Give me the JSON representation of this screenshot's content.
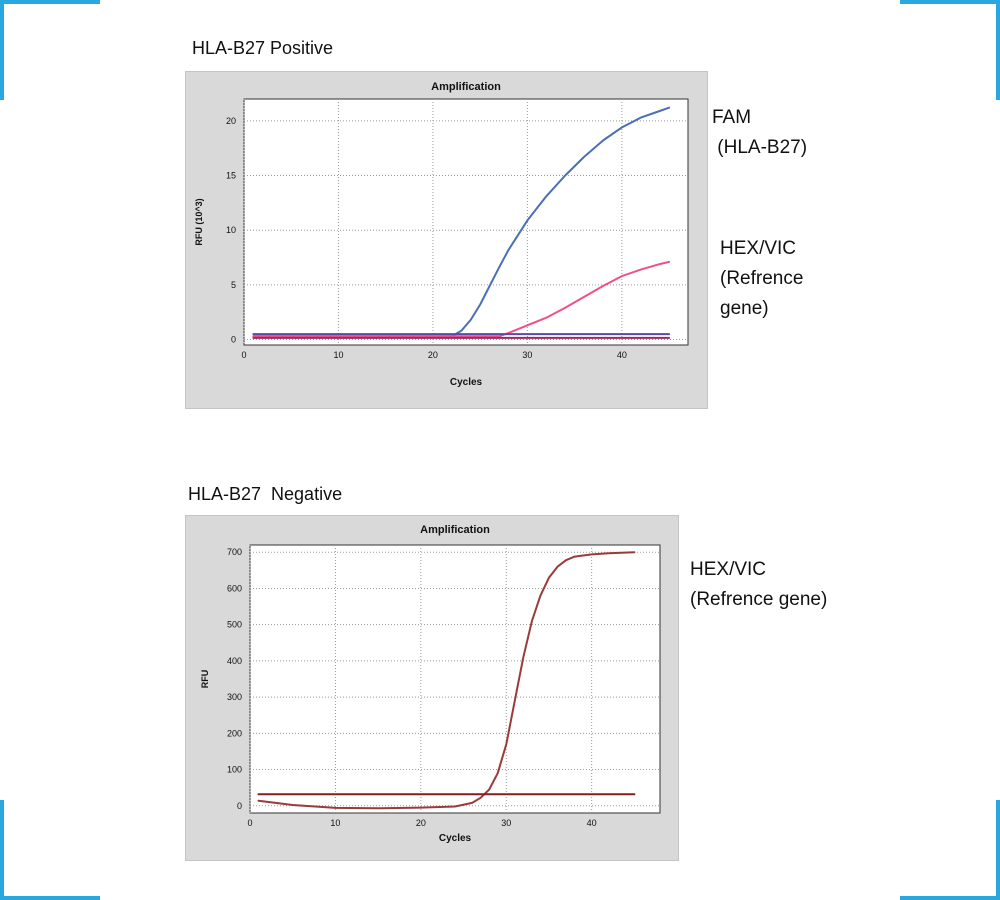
{
  "panels": [
    {
      "heading": "HLA-B27 Positive",
      "side_labels": [
        {
          "color": "#4a6fb5",
          "lines": [
            "FAM",
            " (HLA-B27)"
          ]
        },
        {
          "color": "#f0508a",
          "lines": [
            "HEX/VIC",
            "(Refrence",
            "gene)"
          ]
        }
      ]
    },
    {
      "heading": "HLA-B27  Negative",
      "side_labels": [
        {
          "color": "#9a3b3b",
          "lines": [
            "HEX/VIC",
            "(Refrence gene)"
          ]
        }
      ]
    }
  ],
  "chart_data": [
    {
      "type": "line",
      "title": "Amplification",
      "xlabel": "Cycles",
      "ylabel": "RFU (10^3)",
      "xlim": [
        0,
        47
      ],
      "ylim": [
        -0.5,
        22
      ],
      "x_ticks": [
        0,
        10,
        20,
        30,
        40
      ],
      "y_ticks": [
        0,
        5,
        10,
        15,
        20
      ],
      "grid": true,
      "series": [
        {
          "color": "#4a6fb5",
          "x": [
            1,
            22,
            23,
            24,
            25,
            26,
            27,
            28,
            30,
            32,
            34,
            36,
            38,
            40,
            42,
            44,
            45
          ],
          "y": [
            0.3,
            0.3,
            0.8,
            1.8,
            3.2,
            4.9,
            6.6,
            8.2,
            10.9,
            13.1,
            15.0,
            16.7,
            18.2,
            19.4,
            20.3,
            20.9,
            21.2
          ]
        },
        {
          "color": "#f0508a",
          "x": [
            1,
            27,
            28,
            30,
            32,
            34,
            36,
            38,
            40,
            42,
            44,
            45
          ],
          "y": [
            0.3,
            0.3,
            0.6,
            1.3,
            2.0,
            2.9,
            3.9,
            4.9,
            5.8,
            6.4,
            6.9,
            7.1
          ]
        },
        {
          "color": "#5a4aa6",
          "x": [
            1,
            45
          ],
          "y": [
            0.5,
            0.5
          ]
        },
        {
          "color": "#9c2a5a",
          "x": [
            1,
            45
          ],
          "y": [
            0.15,
            0.15
          ]
        }
      ]
    },
    {
      "type": "line",
      "title": "Amplification",
      "xlabel": "Cycles",
      "ylabel": "RFU",
      "xlim": [
        0,
        48
      ],
      "ylim": [
        -20,
        720
      ],
      "x_ticks": [
        0,
        10,
        20,
        30,
        40
      ],
      "y_ticks": [
        0,
        100,
        200,
        300,
        400,
        500,
        600,
        700
      ],
      "grid": true,
      "series": [
        {
          "color": "#9a3b3b",
          "x": [
            1,
            5,
            10,
            15,
            20,
            24,
            26,
            27,
            28,
            29,
            30,
            31,
            32,
            33,
            34,
            35,
            36,
            37,
            38,
            40,
            42,
            45
          ],
          "y": [
            14,
            2,
            -6,
            -7,
            -5,
            -2,
            8,
            22,
            45,
            90,
            170,
            290,
            410,
            510,
            580,
            630,
            660,
            678,
            688,
            694,
            697,
            700
          ]
        },
        {
          "color": "#8b1c1c",
          "x": [
            1,
            45
          ],
          "y": [
            32,
            32
          ]
        }
      ]
    }
  ]
}
